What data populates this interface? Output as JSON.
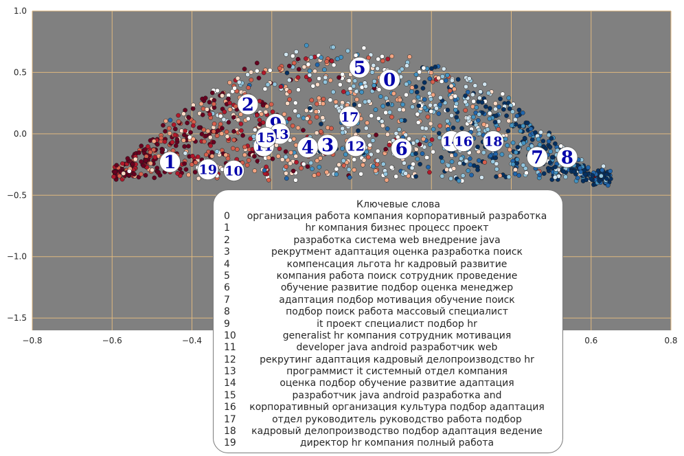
{
  "chart_data": {
    "type": "scatter",
    "title": "",
    "xlabel": "",
    "ylabel": "",
    "xlim": [
      -0.8,
      0.8
    ],
    "ylim": [
      -1.6,
      1.0
    ],
    "xticks": [
      "−0.8",
      "−0.6",
      "−0.4",
      "−0.2",
      "0.0",
      "0.2",
      "0.4",
      "0.6",
      "0.8"
    ],
    "yticks": [
      "1.0",
      "0.5",
      "0.0",
      "−0.5",
      "−1.0",
      "−1.5"
    ],
    "xtick_values": [
      -0.8,
      -0.6,
      -0.4,
      -0.2,
      0.0,
      0.2,
      0.4,
      0.6,
      0.8
    ],
    "ytick_values": [
      1.0,
      0.5,
      0.0,
      -0.5,
      -1.0,
      -1.5
    ],
    "grid": true,
    "background": "#808080",
    "grid_color": "#e0b97f",
    "point_colors": [
      "#67001f",
      "#b2182b",
      "#d6604d",
      "#f4a582",
      "#fddbc7",
      "#ffffff",
      "#d1e5f0",
      "#92c5de",
      "#4393c3",
      "#2166ac",
      "#053061"
    ],
    "point_cloud": {
      "shape": "arc from (-0.6, -0.4) up to a peak near (0.0, 0.7) down to (0.65, -0.25)",
      "point_count": 1500,
      "description_note": ""
    },
    "centroids": [
      {
        "label": "0",
        "x": 0.095,
        "y": 0.44
      },
      {
        "label": "1",
        "x": -0.455,
        "y": -0.23
      },
      {
        "label": "2",
        "x": -0.26,
        "y": 0.24
      },
      {
        "label": "3",
        "x": -0.06,
        "y": -0.09
      },
      {
        "label": "4",
        "x": -0.11,
        "y": -0.11
      },
      {
        "label": "5",
        "x": 0.02,
        "y": 0.54
      },
      {
        "label": "6",
        "x": 0.125,
        "y": -0.12
      },
      {
        "label": "7",
        "x": 0.465,
        "y": -0.19
      },
      {
        "label": "8",
        "x": 0.54,
        "y": -0.19
      },
      {
        "label": "9",
        "x": -0.19,
        "y": 0.08
      },
      {
        "label": "10",
        "x": -0.295,
        "y": -0.3
      },
      {
        "label": "11",
        "x": -0.22,
        "y": -0.1
      },
      {
        "label": "12",
        "x": 0.01,
        "y": -0.1
      },
      {
        "label": "13",
        "x": -0.18,
        "y": 0.0
      },
      {
        "label": "14",
        "x": 0.25,
        "y": -0.06
      },
      {
        "label": "15",
        "x": -0.215,
        "y": -0.03
      },
      {
        "label": "16",
        "x": 0.28,
        "y": -0.06
      },
      {
        "label": "17",
        "x": -0.005,
        "y": 0.14
      },
      {
        "label": "18",
        "x": 0.355,
        "y": -0.06
      },
      {
        "label": "19",
        "x": -0.36,
        "y": -0.29
      }
    ]
  },
  "legend": {
    "title": "Ключевые слова",
    "items": [
      {
        "idx": "0",
        "text": "организация работа компания корпоративный разработка"
      },
      {
        "idx": "1",
        "text": "hr компания бизнес процесс проект"
      },
      {
        "idx": "2",
        "text": "разработка система web внедрение java"
      },
      {
        "idx": "3",
        "text": "рекрутмент адаптация оценка разработка поиск"
      },
      {
        "idx": "4",
        "text": "компенсация льгота hr кадровый развитие"
      },
      {
        "idx": "5",
        "text": "компания работа поиск сотрудник проведение"
      },
      {
        "idx": "6",
        "text": "обучение развитие подбор оценка менеджер"
      },
      {
        "idx": "7",
        "text": "адаптация подбор мотивация обучение поиск"
      },
      {
        "idx": "8",
        "text": "подбор поиск работа массовый специалист"
      },
      {
        "idx": "9",
        "text": "it проект специалист подбор hr"
      },
      {
        "idx": "10",
        "text": "generalist hr компания сотрудник мотивация"
      },
      {
        "idx": "11",
        "text": "developer java android разработчик web"
      },
      {
        "idx": "12",
        "text": "рекрутинг адаптация кадровый делопроизводство hr"
      },
      {
        "idx": "13",
        "text": "программист it системный отдел компания"
      },
      {
        "idx": "14",
        "text": "оценка подбор обучение развитие адаптация"
      },
      {
        "idx": "15",
        "text": "разработчик java android разработка and"
      },
      {
        "idx": "16",
        "text": "корпоративный организация культура подбор адаптация"
      },
      {
        "idx": "17",
        "text": "отдел руководитель руководство работа подбор"
      },
      {
        "idx": "18",
        "text": "кадровый делопроизводство подбор адаптация ведение"
      },
      {
        "idx": "19",
        "text": "директор hr компания полный работа"
      }
    ]
  }
}
